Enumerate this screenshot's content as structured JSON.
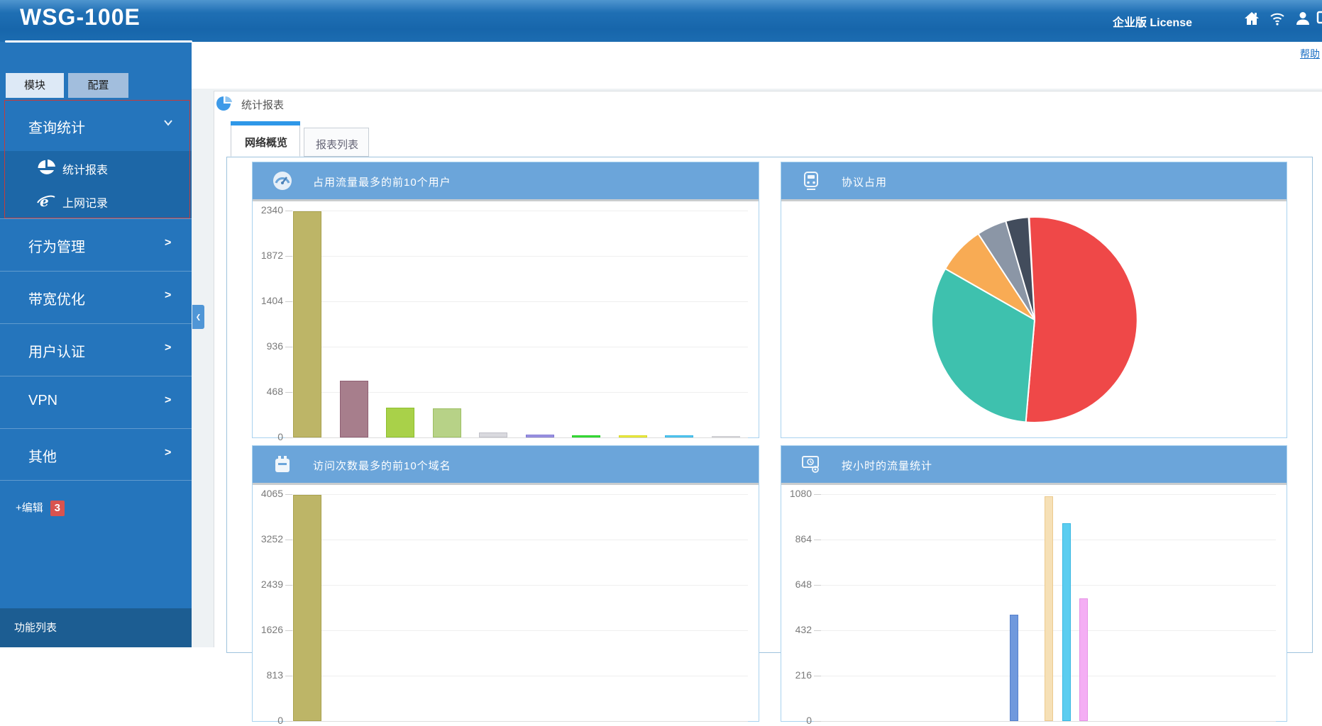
{
  "header": {
    "logo": "WSG-100E",
    "license_label": "企业版 License",
    "help_label": "帮助",
    "icons": [
      "home-icon",
      "wifi-icon",
      "user-icon",
      "monitor-icon-partial"
    ]
  },
  "sidebar": {
    "tabs": [
      {
        "label": "模块",
        "active": true
      },
      {
        "label": "配置",
        "active": false
      }
    ],
    "expanded_section": {
      "label": "查询统计",
      "caret": "expanded",
      "items": [
        {
          "icon": "pie-chart-icon",
          "label": "统计报表",
          "selected": true
        },
        {
          "icon": "ie-browser-icon",
          "label": "上网记录",
          "selected": false
        }
      ]
    },
    "sections": [
      {
        "label": "行为管理"
      },
      {
        "label": "带宽优化"
      },
      {
        "label": "用户认证"
      },
      {
        "label": "VPN"
      },
      {
        "label": "其他"
      }
    ],
    "edit": {
      "label": "+编辑",
      "badge": "3"
    },
    "footer_label": "功能列表"
  },
  "main": {
    "breadcrumb_title": "统计报表",
    "tabs": [
      {
        "label": "网络概览",
        "active": true
      },
      {
        "label": "报表列表",
        "active": false
      }
    ]
  },
  "colors": {
    "header_blue": "#1766ab",
    "sidebar_blue": "#2575bc",
    "panel_header_blue": "#6ba5da",
    "highlight_red_border": "#c43c3c",
    "badge_red": "#d9534f",
    "help_link_blue": "#1b6fc4",
    "active_tab_strip": "#2e97e8"
  },
  "chart_data": [
    {
      "id": "top-users",
      "type": "bar",
      "title": "占用流量最多的前10个用户",
      "icon": "gauge-icon",
      "yticks": [
        2340,
        1872,
        1404,
        936,
        468,
        0
      ],
      "ylim": [
        0,
        2340
      ],
      "grid": true,
      "values": [
        2330,
        585,
        305,
        300,
        50,
        28,
        22,
        20,
        20,
        10
      ],
      "bar_colors": [
        {
          "fill": "#bdb567",
          "edge": "#a9a24e"
        },
        {
          "fill": "#a77e8c",
          "edge": "#8f5f73"
        },
        {
          "fill": "#a9d149",
          "edge": "#8cbf2e"
        },
        {
          "fill": "#b7d287",
          "edge": "#9cbf63"
        },
        {
          "fill": "#d9d9de",
          "edge": "#c0c0c8"
        },
        {
          "fill": "#9e97e2",
          "edge": "#7f76d4"
        },
        {
          "fill": "#3fe23f",
          "edge": "#22cc22"
        },
        {
          "fill": "#f0f04a",
          "edge": "#d8d820"
        },
        {
          "fill": "#5ecbf2",
          "edge": "#35b5e5"
        },
        {
          "fill": "#e4e4e6",
          "edge": "#d0d0d4"
        }
      ]
    },
    {
      "id": "protocol",
      "type": "pie",
      "title": "协议占用",
      "icon": "train-icon",
      "start_angle_deg": -3,
      "slices": [
        {
          "percent": 52.2,
          "color": "#ef4848"
        },
        {
          "percent": 31.9,
          "color": "#3ec1ae"
        },
        {
          "percent": 7.5,
          "color": "#f8ab54"
        },
        {
          "percent": 4.7,
          "color": "#8b96a6"
        },
        {
          "percent": 3.6,
          "color": "#424c5c"
        }
      ],
      "legend": "none"
    },
    {
      "id": "top-domains",
      "type": "bar",
      "title": "访问次数最多的前10个域名",
      "icon": "bag-icon",
      "yticks": [
        4065,
        3252,
        2439,
        1626
      ],
      "ylim": [
        0,
        4065
      ],
      "grid": true,
      "values": [
        4050
      ],
      "bar_colors": [
        {
          "fill": "#bdb567",
          "edge": "#a9a24e"
        }
      ]
    },
    {
      "id": "hourly",
      "type": "bar",
      "title": "按小时的流量统计",
      "icon": "monitor-clock-icon",
      "yticks": [
        1080,
        864,
        648,
        432
      ],
      "ylim": [
        0,
        1080
      ],
      "grid": true,
      "narrow": true,
      "slots": [
        0,
        2,
        3,
        4
      ],
      "values": [
        505,
        1070,
        940,
        585
      ],
      "bar_colors": [
        {
          "fill": "#7099dd",
          "edge": "#5580cc"
        },
        {
          "fill": "#f6e0b6",
          "edge": "#ecca8e"
        },
        {
          "fill": "#5bcdf0",
          "edge": "#3ab8e2"
        },
        {
          "fill": "#f4aef4",
          "edge": "#e693e6"
        }
      ]
    }
  ]
}
